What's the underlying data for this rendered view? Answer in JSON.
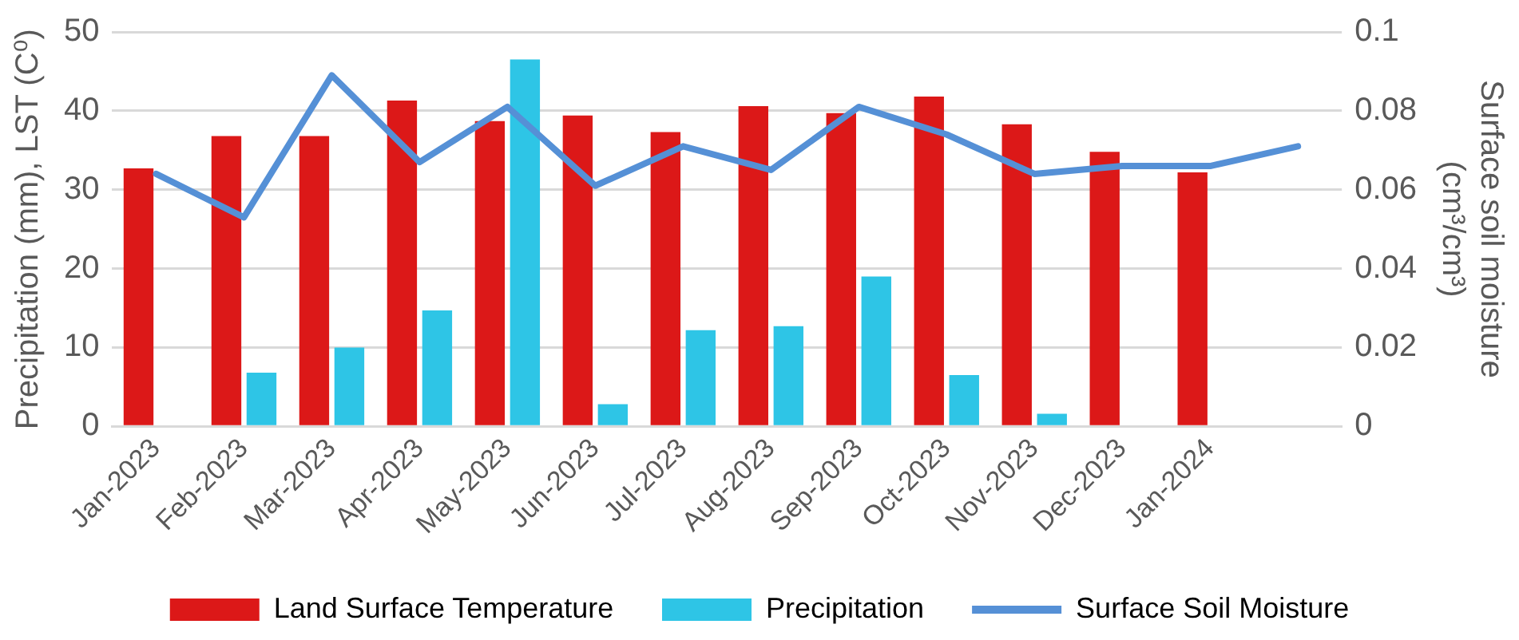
{
  "chart_data": {
    "type": "bar",
    "categories": [
      "Jan-2023",
      "Feb-2023",
      "Mar-2023",
      "Apr-2023",
      "May-2023",
      "Jun-2023",
      "Jul-2023",
      "Aug-2023",
      "Sep-2023",
      "Oct-2023",
      "Nov-2023",
      "Dec-2023",
      "Jan-2024",
      null
    ],
    "ylabel": "Precipitation (mm), LST (C⁰)",
    "y2label": "Surface soil moisture (cm³/cm³)",
    "series": [
      {
        "name": "Land Surface Temperature",
        "color": "#dc1818",
        "values": [
          32.7,
          36.8,
          36.8,
          41.3,
          38.7,
          39.4,
          37.3,
          40.6,
          39.7,
          41.8,
          38.3,
          34.8,
          32.2,
          null
        ]
      },
      {
        "name": "Precipitation",
        "color": "#2ec5e6",
        "values": [
          null,
          6.8,
          10.0,
          14.7,
          46.5,
          2.8,
          12.2,
          12.7,
          19.0,
          6.5,
          1.6,
          null,
          null,
          null
        ]
      },
      {
        "name": "Surface Soil Moisture",
        "type": "line",
        "axis": "y2",
        "color": "#5590d6",
        "values": [
          0.064,
          0.053,
          0.089,
          0.067,
          0.081,
          0.061,
          0.071,
          0.065,
          0.081,
          0.074,
          0.064,
          0.066,
          0.066,
          0.071
        ]
      }
    ],
    "ylim": [
      0,
      50
    ],
    "yticks": [
      0,
      10,
      20,
      30,
      40,
      50
    ],
    "y2lim": [
      0,
      0.1
    ],
    "y2ticks": [
      0,
      0.02,
      0.04,
      0.06,
      0.08,
      0.1
    ],
    "grid": "y",
    "legend": "bottom",
    "marker": "none",
    "line_style": "solid"
  }
}
